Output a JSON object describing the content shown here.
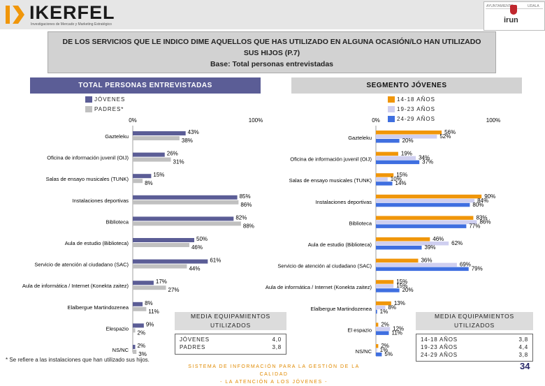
{
  "header": {
    "brand": "IKERFEL",
    "brand_sub": "Investigaciones de Mercado y Marketing Estratégico",
    "irun_left": "AYUNTAMIENTO",
    "irun_right": "UDALA",
    "irun_name": "irun"
  },
  "title": {
    "line1": "DE LOS SERVICIOS QUE LE INDICO DIME AQUELLOS QUE HAS UTILIZADO EN ALGUNA OCASIÓN/LO HAN UTILIZADO",
    "line2": "SUS HIJOS (P.7)",
    "line3": "Base: Total personas entrevistadas"
  },
  "sections": {
    "left": "TOTAL PERSONAS ENTREVISTADAS",
    "right": "SEGMENTO JÓVENES"
  },
  "colors": {
    "jovenes": "#5b5d96",
    "padres": "#c0c0c0",
    "age_14_18": "#f0960a",
    "age_19_23": "#cfcff0",
    "age_24_29": "#3f6fe0"
  },
  "chart_data": [
    {
      "type": "bar",
      "orientation": "horizontal",
      "title": "TOTAL PERSONAS ENTREVISTADAS",
      "xlim": [
        0,
        100
      ],
      "tick_labels": [
        "0%",
        "100%"
      ],
      "categories": [
        "Gazteleku",
        "Oficina de información juvenil (OIJ)",
        "Salas de ensayo musicales (TUNK)",
        "Instalaciones deportivas",
        "Biblioteca",
        "Aula de estudio (Biblioteca)",
        "Servicio de atención al ciudadano (SAC)",
        "Aula de informática / Internet (Konekta zaitez)",
        "Elalbergue Martindozenea",
        "Elespazio",
        "NS/NC"
      ],
      "series": [
        {
          "name": "JÓVENES",
          "values": [
            43,
            26,
            15,
            85,
            82,
            50,
            61,
            17,
            8,
            9,
            2
          ]
        },
        {
          "name": "PADRES*",
          "values": [
            38,
            31,
            8,
            86,
            88,
            46,
            44,
            27,
            11,
            2,
            3
          ]
        }
      ]
    },
    {
      "type": "bar",
      "orientation": "horizontal",
      "title": "SEGMENTO JÓVENES",
      "xlim": [
        0,
        100
      ],
      "tick_labels": [
        "0%",
        "100%"
      ],
      "categories": [
        "Gazteleku",
        "Oficina de información juvenil (OIJ)",
        "Salas de ensayo musicales (TUNK)",
        "Instalaciones deportivas",
        "Biblioteca",
        "Aula de estudio (Biblioteca)",
        "Servicio de atención al ciudadano (SAC)",
        "Aula de informática / Internet (Konekta zaitez)",
        "Elalbergue Martindozenea",
        "El espazio",
        "NS/NC"
      ],
      "series": [
        {
          "name": "14-18 AÑOS",
          "values": [
            56,
            19,
            15,
            90,
            83,
            46,
            36,
            15,
            13,
            2,
            2
          ]
        },
        {
          "name": "19-23 AÑOS",
          "values": [
            52,
            34,
            10,
            84,
            86,
            62,
            69,
            15,
            8,
            12,
            1
          ]
        },
        {
          "name": "24-29 AÑOS",
          "values": [
            20,
            37,
            14,
            80,
            77,
            39,
            79,
            20,
            1,
            11,
            5
          ]
        }
      ]
    }
  ],
  "summary_left": {
    "title1": "MEDIA EQUIPAMIENTOS",
    "title2": "UTILIZADOS",
    "rows": [
      {
        "label": "JÓVENES",
        "value": "4,0"
      },
      {
        "label": "PADRES",
        "value": "3,8"
      }
    ]
  },
  "summary_right": {
    "title1": "MEDIA EQUIPAMIENTOS",
    "title2": "UTILIZADOS",
    "rows": [
      {
        "label": "14-18 AÑOS",
        "value": "3,8"
      },
      {
        "label": "19-23 AÑOS",
        "value": "4,4"
      },
      {
        "label": "24-29 AÑOS",
        "value": "3,8"
      }
    ]
  },
  "footnote": "* Se refiere a las instalaciones que han utilizado sus hijos.",
  "footer": {
    "line1": "SISTEMA DE INFORMACIÓN PARA LA GESTIÓN DE LA CALIDAD",
    "line2": "- LA ATENCIÓN A LOS JÓVENES -"
  },
  "page_number": "34"
}
